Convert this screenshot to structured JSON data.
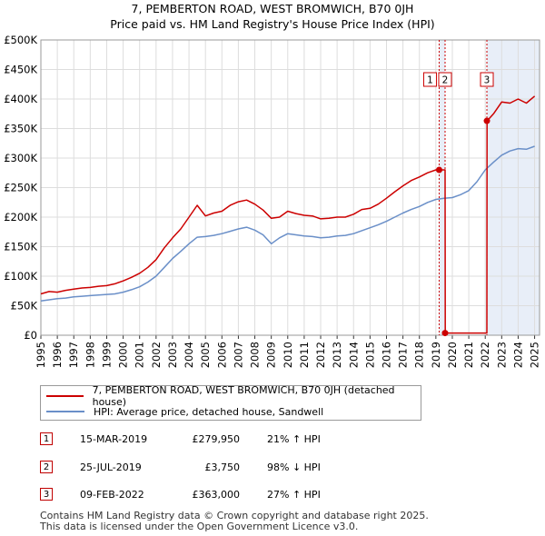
{
  "title": "7, PEMBERTON ROAD, WEST BROMWICH, B70 0JH",
  "subtitle": "Price paid vs. HM Land Registry's House Price Index (HPI)",
  "chart_data": {
    "type": "line",
    "title": "7, PEMBERTON ROAD, WEST BROMWICH, B70 0JH",
    "xlabel": "",
    "ylabel": "",
    "xlim": [
      1995,
      2025.3
    ],
    "ylim": [
      0,
      500000
    ],
    "y_ticks": [
      0,
      50000,
      100000,
      150000,
      200000,
      250000,
      300000,
      350000,
      400000,
      450000,
      500000
    ],
    "y_tick_labels": [
      "£0",
      "£50K",
      "£100K",
      "£150K",
      "£200K",
      "£250K",
      "£300K",
      "£350K",
      "£400K",
      "£450K",
      "£500K"
    ],
    "x_ticks": [
      1995,
      1996,
      1997,
      1998,
      1999,
      2000,
      2001,
      2002,
      2003,
      2004,
      2005,
      2006,
      2007,
      2008,
      2009,
      2010,
      2011,
      2012,
      2013,
      2014,
      2015,
      2016,
      2017,
      2018,
      2019,
      2020,
      2021,
      2022,
      2023,
      2024,
      2025
    ],
    "x_tick_labels": [
      "1995",
      "1996",
      "1997",
      "1998",
      "1999",
      "2000",
      "2001",
      "2002",
      "2003",
      "2004",
      "2005",
      "2006",
      "2007",
      "2008",
      "2009",
      "2010",
      "2011",
      "2012",
      "2013",
      "2014",
      "2015",
      "2016",
      "2017",
      "2018",
      "2019",
      "2020",
      "2021",
      "2022",
      "2023",
      "2024",
      "2025"
    ],
    "grid": true,
    "series": [
      {
        "name": "7, PEMBERTON ROAD, WEST BROMWICH, B70 0JH (detached house)",
        "color": "#cc0000",
        "x": [
          1995.0,
          1995.5,
          1996.0,
          1996.5,
          1997.0,
          1997.5,
          1998.0,
          1998.5,
          1999.0,
          1999.5,
          2000.0,
          2000.5,
          2001.0,
          2001.5,
          2002.0,
          2002.5,
          2003.0,
          2003.5,
          2004.0,
          2004.5,
          2005.0,
          2005.5,
          2006.0,
          2006.5,
          2007.0,
          2007.5,
          2008.0,
          2008.5,
          2009.0,
          2009.5,
          2010.0,
          2010.5,
          2011.0,
          2011.5,
          2012.0,
          2012.5,
          2013.0,
          2013.5,
          2014.0,
          2014.5,
          2015.0,
          2015.5,
          2016.0,
          2016.5,
          2017.0,
          2017.5,
          2018.0,
          2018.5,
          2019.0,
          2019.2,
          2019.56,
          2019.57,
          2020.0,
          2020.5,
          2021.0,
          2021.5,
          2022.0,
          2022.1,
          2022.11,
          2022.5,
          2023.0,
          2023.5,
          2024.0,
          2024.5,
          2025.0
        ],
        "y": [
          70000,
          74000,
          73000,
          76000,
          78000,
          80000,
          81000,
          83000,
          84000,
          87000,
          92000,
          98000,
          105000,
          115000,
          128000,
          148000,
          165000,
          180000,
          200000,
          220000,
          202000,
          207000,
          210000,
          220000,
          226000,
          229000,
          222000,
          212000,
          198000,
          200000,
          210000,
          206000,
          203000,
          202000,
          197000,
          198000,
          200000,
          200000,
          205000,
          213000,
          215000,
          222000,
          232000,
          243000,
          253000,
          262000,
          268000,
          275000,
          280000,
          279950,
          279950,
          3750,
          3750,
          3750,
          3750,
          3750,
          3750,
          3750,
          363000,
          375000,
          395000,
          393000,
          400000,
          393000,
          405000
        ]
      },
      {
        "name": "HPI: Average price, detached house, Sandwell",
        "color": "#6a8fc8",
        "x": [
          1995.0,
          1995.5,
          1996.0,
          1996.5,
          1997.0,
          1997.5,
          1998.0,
          1998.5,
          1999.0,
          1999.5,
          2000.0,
          2000.5,
          2001.0,
          2001.5,
          2002.0,
          2002.5,
          2003.0,
          2003.5,
          2004.0,
          2004.5,
          2005.0,
          2005.5,
          2006.0,
          2006.5,
          2007.0,
          2007.5,
          2008.0,
          2008.5,
          2009.0,
          2009.5,
          2010.0,
          2010.5,
          2011.0,
          2011.5,
          2012.0,
          2012.5,
          2013.0,
          2013.5,
          2014.0,
          2014.5,
          2015.0,
          2015.5,
          2016.0,
          2016.5,
          2017.0,
          2017.5,
          2018.0,
          2018.5,
          2019.0,
          2019.5,
          2020.0,
          2020.5,
          2021.0,
          2021.5,
          2022.0,
          2022.5,
          2023.0,
          2023.5,
          2024.0,
          2024.5,
          2025.0
        ],
        "y": [
          58000,
          60000,
          62000,
          63000,
          65000,
          66000,
          67000,
          68000,
          69000,
          70000,
          73000,
          77000,
          82000,
          90000,
          100000,
          115000,
          130000,
          142000,
          155000,
          166000,
          167000,
          169000,
          172000,
          176000,
          180000,
          183000,
          178000,
          170000,
          155000,
          165000,
          172000,
          170000,
          168000,
          167000,
          165000,
          166000,
          168000,
          169000,
          172000,
          177000,
          182000,
          187000,
          193000,
          200000,
          207000,
          213000,
          218000,
          225000,
          230000,
          232000,
          233000,
          238000,
          245000,
          260000,
          280000,
          293000,
          305000,
          312000,
          316000,
          315000,
          320000
        ]
      }
    ],
    "transactions": [
      {
        "id": "1",
        "x": 2019.2,
        "y": 279950
      },
      {
        "id": "2",
        "x": 2019.56,
        "y": 3750
      },
      {
        "id": "3",
        "x": 2022.1,
        "y": 363000
      }
    ],
    "shaded_ranges": [
      [
        2019.2,
        2019.56
      ],
      [
        2022.1,
        2025.3
      ]
    ]
  },
  "legend": {
    "property_label": "7, PEMBERTON ROAD, WEST BROMWICH, B70 0JH (detached house)",
    "hpi_label": "HPI: Average price, detached house, Sandwell"
  },
  "transactions_table": [
    {
      "num": "1",
      "date": "15-MAR-2019",
      "price": "£279,950",
      "hpi": "21% ↑ HPI"
    },
    {
      "num": "2",
      "date": "25-JUL-2019",
      "price": "£3,750",
      "hpi": "98% ↓ HPI"
    },
    {
      "num": "3",
      "date": "09-FEB-2022",
      "price": "£363,000",
      "hpi": "27% ↑ HPI"
    }
  ],
  "footer": {
    "line1": "Contains HM Land Registry data © Crown copyright and database right 2025.",
    "line2": "This data is licensed under the Open Government Licence v3.0."
  },
  "colors": {
    "property": "#cc0000",
    "hpi": "#6a8fc8",
    "grid": "#dddddd",
    "shade": "#e8eef8"
  }
}
